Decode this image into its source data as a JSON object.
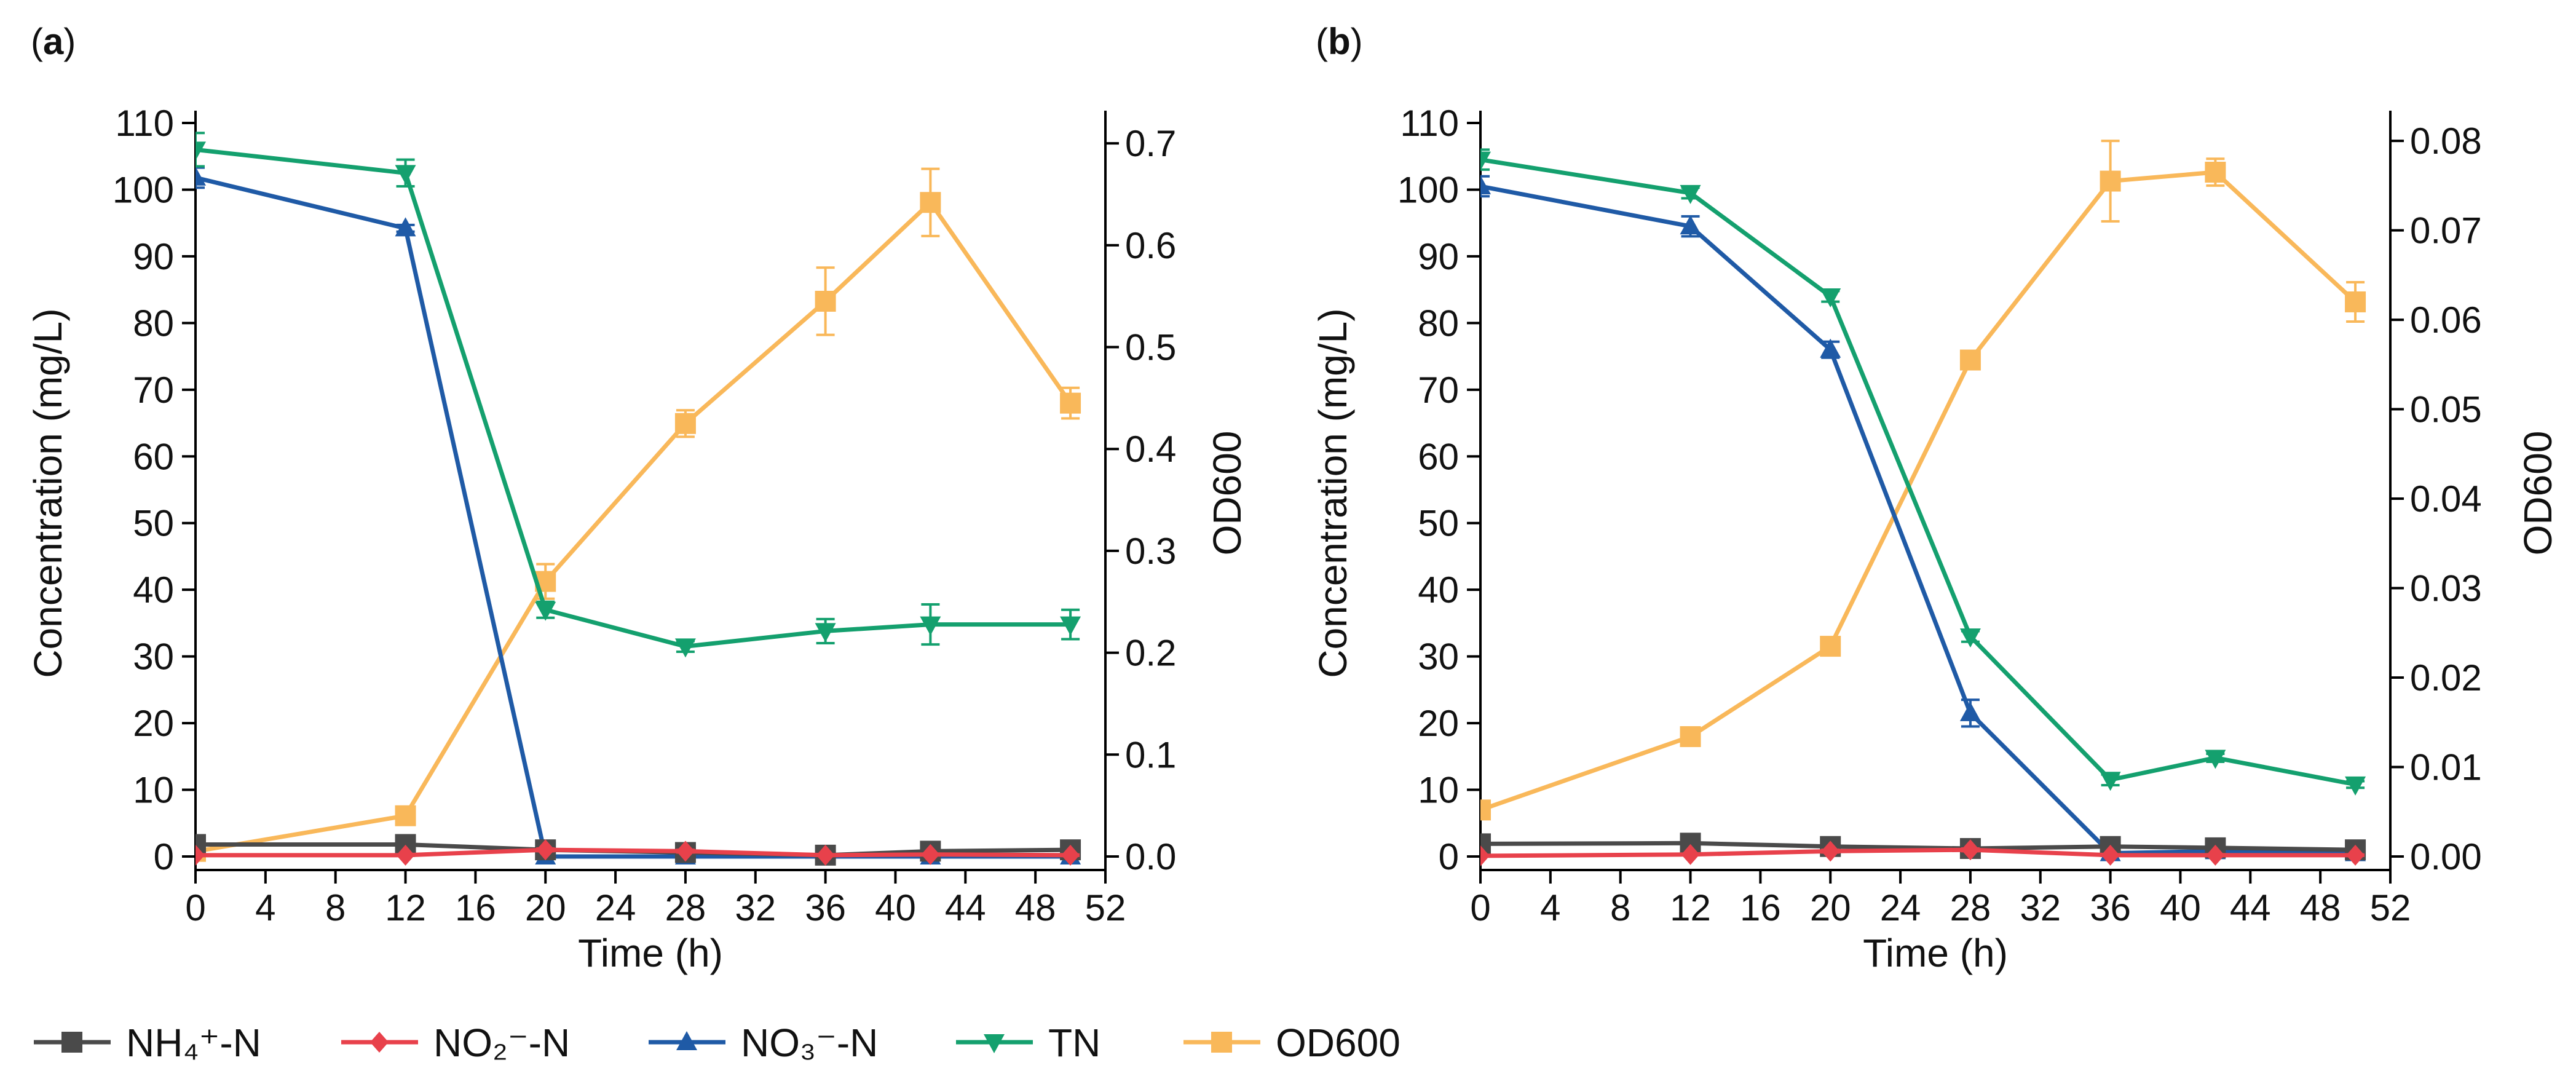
{
  "legend": [
    {
      "key": "NH4",
      "label": "NH₄⁺-N",
      "color": "#4a4a4a",
      "marker": "square"
    },
    {
      "key": "NO2",
      "label": "NO₂⁻-N",
      "color": "#e8414b",
      "marker": "diamond"
    },
    {
      "key": "NO3",
      "label": "NO₃⁻-N",
      "color": "#1f5aa6",
      "marker": "triangle-up"
    },
    {
      "key": "TN",
      "label": "TN",
      "color": "#14a06e",
      "marker": "triangle-down"
    },
    {
      "key": "OD600",
      "label": "OD600",
      "color": "#f9b85a",
      "marker": "square"
    }
  ],
  "chart_data": [
    {
      "panel": "a",
      "panel_label": "(a)",
      "type": "line",
      "title": "",
      "xlabel": "Time (h)",
      "ylabel": "Concentration (mg/L)",
      "y2label": "OD600",
      "xlim": [
        0,
        52
      ],
      "ylim": [
        0,
        110
      ],
      "y2lim": [
        0,
        0.72
      ],
      "xticks": [
        0,
        4,
        8,
        12,
        16,
        20,
        24,
        28,
        32,
        36,
        40,
        44,
        48,
        52
      ],
      "yticks": [
        0,
        10,
        20,
        30,
        40,
        50,
        60,
        70,
        80,
        90,
        100,
        110
      ],
      "y2ticks": [
        "0.0",
        "0.1",
        "0.2",
        "0.3",
        "0.4",
        "0.5",
        "0.6",
        "0.7"
      ],
      "x": [
        0,
        12,
        20,
        28,
        36,
        42,
        50
      ],
      "series": [
        {
          "key": "NH4",
          "axis": "left",
          "values": [
            1.8,
            1.8,
            1.0,
            0.6,
            0.2,
            0.8,
            1.0
          ],
          "errors": [
            0.3,
            0.3,
            0.2,
            0.2,
            0.1,
            0.2,
            0.2
          ]
        },
        {
          "key": "NO2",
          "axis": "left",
          "values": [
            0.2,
            0.2,
            1.0,
            0.8,
            0.2,
            0.3,
            0.2
          ],
          "errors": [
            0.1,
            0.1,
            0.2,
            0.2,
            0.1,
            0.1,
            0.1
          ]
        },
        {
          "key": "NO3",
          "axis": "left",
          "values": [
            101.8,
            94.2,
            0.0,
            0.0,
            0.0,
            0.0,
            0.0
          ],
          "errors": [
            1.5,
            0.5,
            0,
            0,
            0,
            0,
            0
          ]
        },
        {
          "key": "TN",
          "axis": "left",
          "values": [
            106.0,
            102.5,
            37.0,
            31.5,
            33.8,
            34.8,
            34.8
          ],
          "errors": [
            2.5,
            2.0,
            1.2,
            0.8,
            1.8,
            3.0,
            2.2
          ]
        },
        {
          "key": "OD600",
          "axis": "right",
          "values": [
            0.005,
            0.04,
            0.27,
            0.425,
            0.545,
            0.642,
            0.445
          ],
          "errors": [
            0.004,
            0.003,
            0.017,
            0.013,
            0.033,
            0.033,
            0.015
          ]
        }
      ]
    },
    {
      "panel": "b",
      "panel_label": "(b)",
      "type": "line",
      "title": "",
      "xlabel": "Time (h)",
      "ylabel": "Concentration (mg/L)",
      "y2label": "OD600",
      "xlim": [
        0,
        52
      ],
      "ylim": [
        0,
        110
      ],
      "y2lim": [
        0,
        0.082
      ],
      "xticks": [
        0,
        4,
        8,
        12,
        16,
        20,
        24,
        28,
        32,
        36,
        40,
        44,
        48,
        52
      ],
      "yticks": [
        0,
        10,
        20,
        30,
        40,
        50,
        60,
        70,
        80,
        90,
        100,
        110
      ],
      "y2ticks": [
        "0.00",
        "0.01",
        "0.02",
        "0.03",
        "0.04",
        "0.05",
        "0.06",
        "0.07",
        "0.08"
      ],
      "x": [
        0,
        12,
        20,
        28,
        36,
        42,
        50
      ],
      "series": [
        {
          "key": "NH4",
          "axis": "left",
          "values": [
            1.9,
            2.0,
            1.5,
            1.2,
            1.5,
            1.3,
            1.0
          ],
          "errors": [
            0.3,
            0.3,
            0.2,
            0.2,
            0.2,
            0.2,
            0.2
          ]
        },
        {
          "key": "NO2",
          "axis": "left",
          "values": [
            0.1,
            0.3,
            0.8,
            1.0,
            0.2,
            0.2,
            0.2
          ],
          "errors": [
            0.1,
            0.1,
            0.2,
            0.2,
            0.1,
            0.1,
            0.1
          ]
        },
        {
          "key": "NO3",
          "axis": "left",
          "values": [
            100.5,
            94.5,
            76.0,
            21.5,
            0.5,
            0.8,
            0.5
          ],
          "errors": [
            1.5,
            1.5,
            1.2,
            2.0,
            0.2,
            0.2,
            0.2
          ]
        },
        {
          "key": "TN",
          "axis": "left",
          "values": [
            104.5,
            99.5,
            84.0,
            33.0,
            11.5,
            14.8,
            10.8
          ],
          "errors": [
            1.5,
            0.8,
            0.8,
            0.8,
            0.8,
            0.6,
            0.5
          ]
        },
        {
          "key": "OD600",
          "axis": "right",
          "values": [
            0.0052,
            0.0134,
            0.0235,
            0.0555,
            0.0755,
            0.0765,
            0.062
          ],
          "errors": [
            0.0004,
            0.0004,
            0.0004,
            0.0004,
            0.0045,
            0.0015,
            0.0022
          ]
        }
      ]
    }
  ]
}
